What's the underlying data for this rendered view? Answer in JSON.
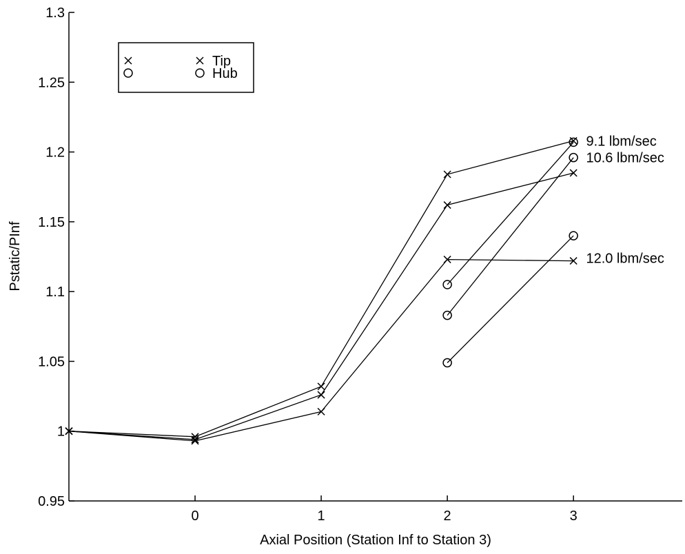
{
  "chart_data": {
    "type": "line",
    "title": "",
    "xlabel": "Axial Position (Station Inf to Station 3)",
    "ylabel": "Pstatic/PInf",
    "xlim": [
      -1,
      3.9
    ],
    "ylim": [
      0.95,
      1.3
    ],
    "x_ticks": [
      0,
      1,
      2,
      3
    ],
    "x_tick_labels": [
      "0",
      "1",
      "2",
      "3"
    ],
    "y_ticks": [
      0.95,
      1,
      1.05,
      1.1,
      1.15,
      1.2,
      1.25,
      1.3
    ],
    "y_tick_labels": [
      "0.95",
      "1",
      "1.05",
      "1.1",
      "1.15",
      "1.2",
      "1.25",
      "1.3"
    ],
    "grid": false,
    "legend": {
      "placement": "top-left",
      "entries": [
        {
          "label": "Tip",
          "marker": "x"
        },
        {
          "label": "Hub",
          "marker": "o"
        }
      ]
    },
    "tip_series": [
      {
        "x": [
          -1,
          0,
          1,
          2,
          3
        ],
        "y": [
          1.0,
          0.996,
          1.032,
          1.184,
          1.208
        ]
      },
      {
        "x": [
          -1,
          0,
          1,
          2,
          3
        ],
        "y": [
          1.0,
          0.994,
          1.026,
          1.162,
          1.185
        ]
      },
      {
        "x": [
          -1,
          0,
          1,
          2,
          3
        ],
        "y": [
          1.0,
          0.993,
          1.014,
          1.123,
          1.122
        ]
      }
    ],
    "hub_series": [
      {
        "x": [
          2,
          3
        ],
        "y": [
          1.105,
          1.207
        ]
      },
      {
        "x": [
          2,
          3
        ],
        "y": [
          1.083,
          1.196
        ]
      },
      {
        "x": [
          2,
          3
        ],
        "y": [
          1.049,
          1.14
        ]
      }
    ],
    "annotations": [
      {
        "text": "9.1 lbm/sec",
        "x": 3.1,
        "y": 1.208
      },
      {
        "text": "10.6 lbm/sec",
        "x": 3.1,
        "y": 1.196
      },
      {
        "text": "12.0 lbm/sec",
        "x": 3.1,
        "y": 1.124
      }
    ]
  }
}
